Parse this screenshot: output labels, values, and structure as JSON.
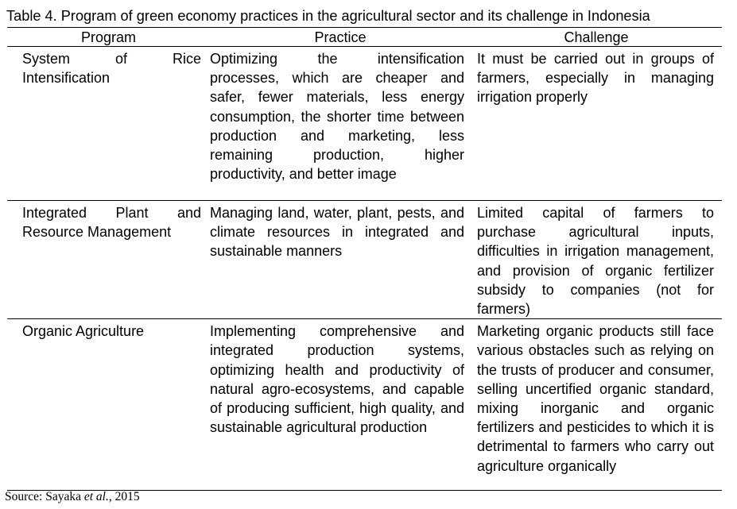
{
  "caption": "Table 4. Program of green economy practices in the agricultural sector and its challenge in Indonesia",
  "table": {
    "headers": [
      "Program",
      "Practice",
      "Challenge"
    ],
    "rows": [
      {
        "program": "System of Rice Intensification",
        "practice": "Optimizing the intensification processes, which are cheaper and safer, fewer materials, less energy consumption, the shorter time between production and marketing, less remaining production, higher productivity, and better image",
        "challenge": "It must be carried out in groups of farmers, especially in managing irrigation properly"
      },
      {
        "program": "Integrated Plant and Resource Management",
        "practice": "Managing land, water, plant, pests, and climate resources in integrated and sustainable manners",
        "challenge": "Limited capital of farmers to purchase agricultural inputs, difficulties in irrigation management, and provision of organic fertilizer subsidy to companies (not for farmers)"
      },
      {
        "program": "Organic Agriculture",
        "practice": "Implementing comprehensive and integrated production systems, optimizing health and productivity of natural agro-ecosystems, and capable of producing sufficient, high quality, and sustainable agricultural production",
        "challenge": "Marketing organic products still face various obstacles such as relying on the trusts of producer and consumer, selling uncertified organic standard, mixing inorganic and organic fertilizers and pesticides to which it is detrimental to farmers who carry out agriculture organically"
      }
    ]
  },
  "source": {
    "prefix": "Source: Sayaka ",
    "italic": "et al.",
    "suffix": ", 2015"
  }
}
